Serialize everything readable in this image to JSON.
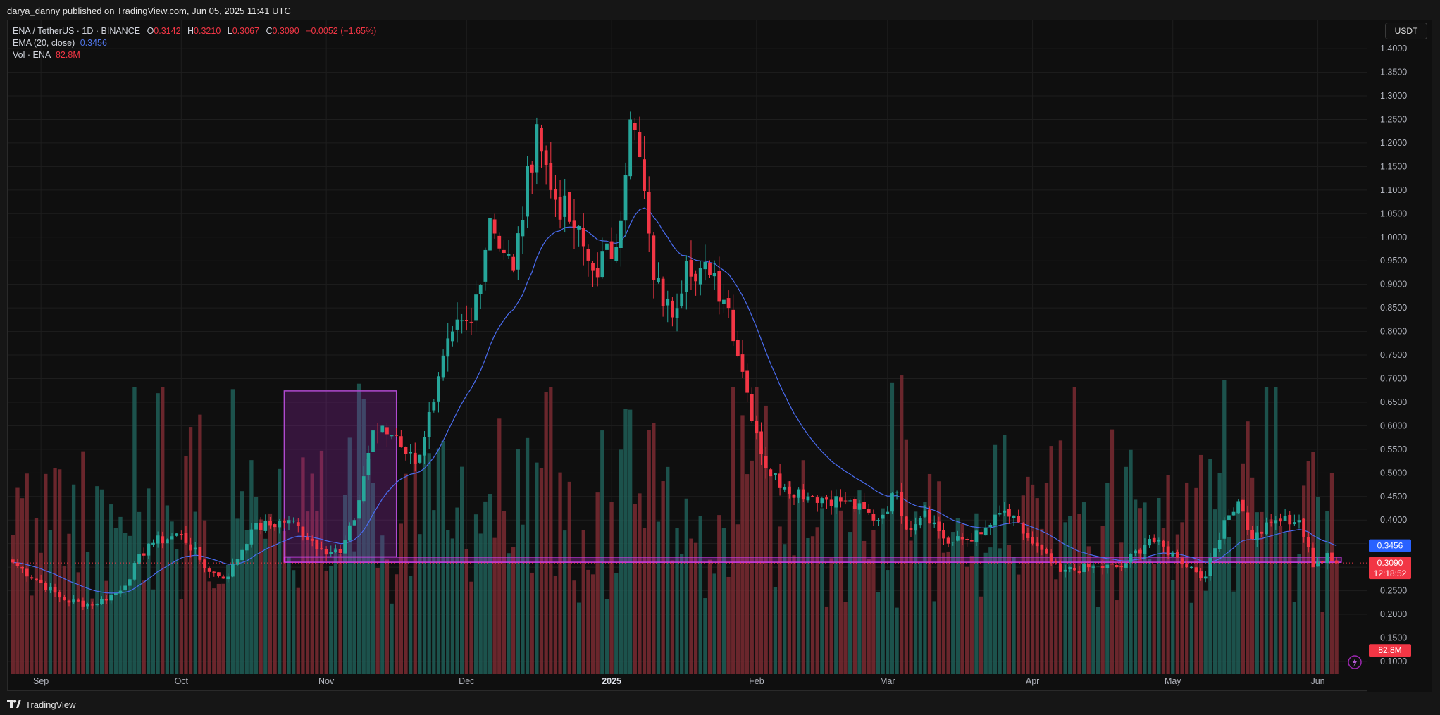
{
  "header": {
    "published_text": "darya_danny published on TradingView.com, Jun 05, 2025 11:41 UTC"
  },
  "footer": {
    "brand": "TradingView"
  },
  "legend": {
    "symbol": "ENA / TetherUS · 1D · BINANCE",
    "open_label": "O",
    "open": "0.3142",
    "high_label": "H",
    "high": "0.3210",
    "low_label": "L",
    "low": "0.3067",
    "close_label": "C",
    "close": "0.3090",
    "change": "−0.0052 (−1.65%)",
    "ema_label": "EMA (20, close)",
    "ema_value": "0.3456",
    "vol_label": "Vol · ENA",
    "vol_value": "82.8M"
  },
  "price_scale": {
    "unit_button": "USDT"
  },
  "badges": {
    "ema": "0.3456",
    "price": "0.3090",
    "countdown": "12:18:52",
    "volume": "82.8M"
  },
  "colors": {
    "up": "#26a69a",
    "down": "#f23645",
    "ema": "#4a6cf0",
    "box": "#9c27b0",
    "zone": "#d33cf0"
  },
  "chart_data": {
    "type": "candlestick",
    "symbol": "ENA / TetherUS",
    "interval": "1D",
    "exchange": "BINANCE",
    "y_axis": {
      "ticks": [
        0.1,
        0.15,
        0.2,
        0.25,
        0.3,
        0.35,
        0.4,
        0.45,
        0.5,
        0.55,
        0.6,
        0.65,
        0.7,
        0.75,
        0.8,
        0.85,
        0.9,
        0.95,
        1.0,
        1.05,
        1.1,
        1.15,
        1.2,
        1.25,
        1.3,
        1.35,
        1.4
      ],
      "ylim": [
        0.085,
        1.445
      ]
    },
    "x_axis": {
      "start": "2024-08-26",
      "end": "2025-06-05",
      "labels": [
        {
          "date": "2024-09-01",
          "text": "Sep"
        },
        {
          "date": "2024-10-01",
          "text": "Oct"
        },
        {
          "date": "2024-11-01",
          "text": "Nov"
        },
        {
          "date": "2024-12-01",
          "text": "Dec"
        },
        {
          "date": "2025-01-01",
          "text": "2025"
        },
        {
          "date": "2025-02-01",
          "text": "Feb"
        },
        {
          "date": "2025-03-01",
          "text": "Mar"
        },
        {
          "date": "2025-04-01",
          "text": "Apr"
        },
        {
          "date": "2025-05-01",
          "text": "May"
        },
        {
          "date": "2025-06-01",
          "text": "Jun"
        }
      ]
    },
    "anchors": [
      {
        "date": "2024-08-26",
        "close": 0.31
      },
      {
        "date": "2024-09-06",
        "close": 0.23
      },
      {
        "date": "2024-09-12",
        "close": 0.22
      },
      {
        "date": "2024-09-18",
        "close": 0.25
      },
      {
        "date": "2024-09-24",
        "close": 0.35
      },
      {
        "date": "2024-10-01",
        "close": 0.37
      },
      {
        "date": "2024-10-07",
        "close": 0.29
      },
      {
        "date": "2024-10-11",
        "close": 0.28
      },
      {
        "date": "2024-10-16",
        "close": 0.38
      },
      {
        "date": "2024-10-24",
        "close": 0.4
      },
      {
        "date": "2024-10-31",
        "close": 0.34
      },
      {
        "date": "2024-11-04",
        "close": 0.33
      },
      {
        "date": "2024-11-07",
        "close": 0.4
      },
      {
        "date": "2024-11-11",
        "close": 0.59
      },
      {
        "date": "2024-11-16",
        "close": 0.58
      },
      {
        "date": "2024-11-20",
        "close": 0.52
      },
      {
        "date": "2024-11-24",
        "close": 0.65
      },
      {
        "date": "2024-11-28",
        "close": 0.8
      },
      {
        "date": "2024-12-02",
        "close": 0.82
      },
      {
        "date": "2024-12-06",
        "close": 1.04
      },
      {
        "date": "2024-12-11",
        "close": 0.93
      },
      {
        "date": "2024-12-16",
        "close": 1.24
      },
      {
        "date": "2024-12-19",
        "close": 1.1
      },
      {
        "date": "2024-12-24",
        "close": 1.02
      },
      {
        "date": "2024-12-28",
        "close": 0.93
      },
      {
        "date": "2025-01-02",
        "close": 0.98
      },
      {
        "date": "2025-01-05",
        "close": 1.25
      },
      {
        "date": "2025-01-07",
        "close": 1.17
      },
      {
        "date": "2025-01-10",
        "close": 0.91
      },
      {
        "date": "2025-01-14",
        "close": 0.83
      },
      {
        "date": "2025-01-17",
        "close": 0.95
      },
      {
        "date": "2025-01-22",
        "close": 0.92
      },
      {
        "date": "2025-01-26",
        "close": 0.85
      },
      {
        "date": "2025-01-30",
        "close": 0.67
      },
      {
        "date": "2025-02-03",
        "close": 0.51
      },
      {
        "date": "2025-02-07",
        "close": 0.47
      },
      {
        "date": "2025-02-13",
        "close": 0.45
      },
      {
        "date": "2025-02-20",
        "close": 0.44
      },
      {
        "date": "2025-02-27",
        "close": 0.4
      },
      {
        "date": "2025-03-03",
        "close": 0.46
      },
      {
        "date": "2025-03-05",
        "close": 0.38
      },
      {
        "date": "2025-03-09",
        "close": 0.42
      },
      {
        "date": "2025-03-14",
        "close": 0.35
      },
      {
        "date": "2025-03-21",
        "close": 0.37
      },
      {
        "date": "2025-03-26",
        "close": 0.42
      },
      {
        "date": "2025-04-01",
        "close": 0.35
      },
      {
        "date": "2025-04-07",
        "close": 0.29
      },
      {
        "date": "2025-04-13",
        "close": 0.3
      },
      {
        "date": "2025-04-20",
        "close": 0.3
      },
      {
        "date": "2025-04-26",
        "close": 0.36
      },
      {
        "date": "2025-05-02",
        "close": 0.32
      },
      {
        "date": "2025-05-08",
        "close": 0.28
      },
      {
        "date": "2025-05-12",
        "close": 0.4
      },
      {
        "date": "2025-05-15",
        "close": 0.44
      },
      {
        "date": "2025-05-18",
        "close": 0.36
      },
      {
        "date": "2025-05-23",
        "close": 0.4
      },
      {
        "date": "2025-05-28",
        "close": 0.4
      },
      {
        "date": "2025-05-31",
        "close": 0.3
      },
      {
        "date": "2025-06-03",
        "close": 0.33
      },
      {
        "date": "2025-06-05",
        "close": 0.309
      }
    ],
    "ema20_last": 0.3456,
    "last_candle": {
      "open": 0.3142,
      "high": 0.321,
      "low": 0.3067,
      "close": 0.309
    },
    "volume_last": "82.8M",
    "annotations": [
      {
        "type": "rectangle",
        "from": "2024-10-23",
        "to": "2024-11-16",
        "price_low": 0.322,
        "price_high": 0.674
      },
      {
        "type": "zone",
        "from": "2024-10-23",
        "to": "2025-06-06",
        "price_low": 0.3105,
        "price_high": 0.3215
      }
    ],
    "grid": true
  }
}
